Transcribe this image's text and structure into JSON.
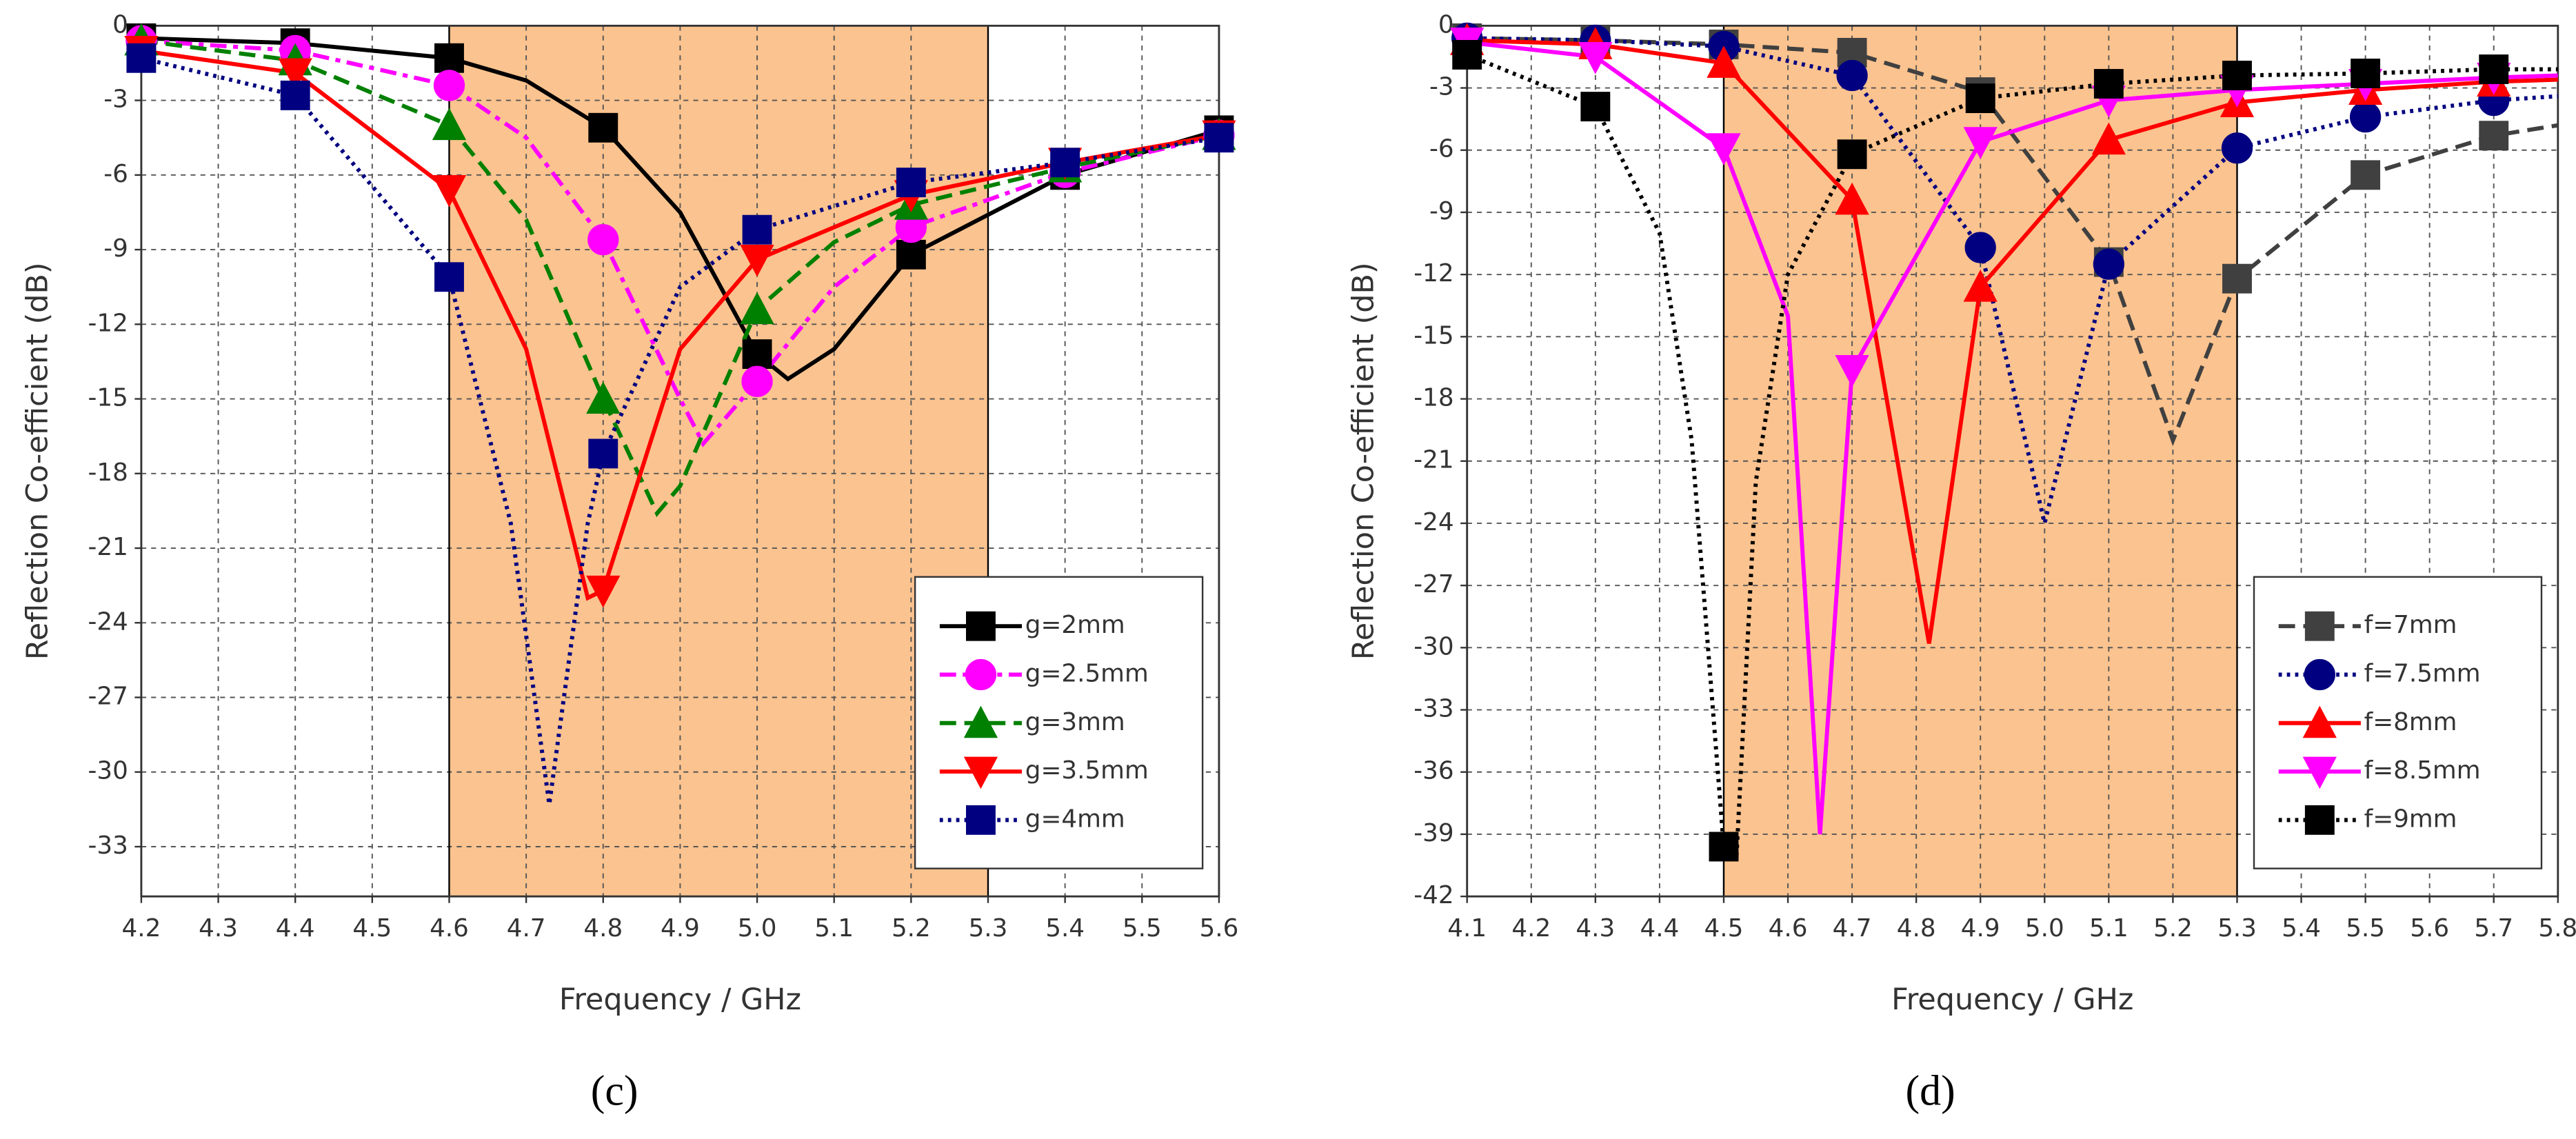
{
  "chart_data": [
    {
      "type": "line",
      "caption": "(c)",
      "xlabel": "Frequency / GHz",
      "ylabel": "Reflection Co-efficient (dB)",
      "xlim": [
        4.2,
        5.6
      ],
      "ylim": [
        -35,
        0
      ],
      "xticks": [
        4.2,
        4.3,
        4.4,
        4.5,
        4.6,
        4.7,
        4.8,
        4.9,
        {
          "value": 5,
          "label": "5.0"
        },
        5.1,
        5.2,
        5.3,
        5.4,
        5.5,
        5.6
      ],
      "yticks": [
        0,
        -3,
        -6,
        -9,
        -12,
        -15,
        -18,
        -21,
        -24,
        -27,
        -30,
        -33
      ],
      "grid": true,
      "shade_x": [
        4.6,
        5.3
      ],
      "shade_color": "#fbc38f",
      "legend_loc": "lower right",
      "marker_step": 0.2,
      "series": [
        {
          "name": "g=2mm",
          "color": "#000000",
          "dash": "solid",
          "marker": "square",
          "x": [
            4.2,
            4.4,
            4.6,
            4.7,
            4.8,
            4.9,
            5.0,
            5.04,
            5.1,
            5.2,
            5.4,
            5.6
          ],
          "values": [
            -0.5,
            -0.7,
            -1.3,
            -2.2,
            -4.1,
            -7.5,
            -13.2,
            -14.2,
            -13,
            -9.2,
            -6,
            -4.2
          ]
        },
        {
          "name": "g=2.5mm",
          "color": "#ff00ff",
          "dash": "dashdot",
          "marker": "circle",
          "x": [
            4.2,
            4.4,
            4.6,
            4.7,
            4.8,
            4.9,
            4.93,
            5.0,
            5.1,
            5.2,
            5.4,
            5.6
          ],
          "values": [
            -0.6,
            -1.0,
            -2.4,
            -4.5,
            -8.6,
            -15,
            -16.8,
            -14.3,
            -10.5,
            -8.1,
            -5.9,
            -4.4
          ]
        },
        {
          "name": "g=3mm",
          "color": "#008000",
          "dash": "dash",
          "marker": "triangle",
          "x": [
            4.2,
            4.4,
            4.6,
            4.7,
            4.8,
            4.87,
            4.9,
            5.0,
            5.1,
            5.2,
            5.4,
            5.6
          ],
          "values": [
            -0.6,
            -1.4,
            -4.0,
            -7.8,
            -15.0,
            -19.6,
            -18.5,
            -11.4,
            -8.7,
            -7.2,
            -5.7,
            -4.4
          ]
        },
        {
          "name": "g=3.5mm",
          "color": "#ff0000",
          "dash": "solid",
          "marker": "triangle-down",
          "x": [
            4.2,
            4.4,
            4.6,
            4.7,
            4.78,
            4.8,
            4.9,
            5.0,
            5.2,
            5.4,
            5.6
          ],
          "values": [
            -1.0,
            -1.9,
            -6.6,
            -13,
            -23,
            -22.7,
            -13,
            -9.4,
            -6.8,
            -5.5,
            -4.4
          ]
        },
        {
          "name": "g=4mm",
          "color": "#000080",
          "dash": "dotted",
          "marker": "square",
          "x": [
            4.2,
            4.4,
            4.6,
            4.68,
            4.73,
            4.78,
            4.8,
            4.9,
            5.0,
            5.2,
            5.4,
            5.6
          ],
          "values": [
            -1.3,
            -2.8,
            -10.1,
            -20,
            -31.3,
            -20,
            -17.2,
            -10.5,
            -8.2,
            -6.3,
            -5.5,
            -4.5
          ]
        }
      ]
    },
    {
      "type": "line",
      "caption": "(d)",
      "xlabel": "Frequency / GHz",
      "ylabel": "Reflection Co-efficient (dB)",
      "xlim": [
        4.1,
        5.8
      ],
      "ylim": [
        -42,
        0
      ],
      "xticks": [
        4.1,
        4.2,
        4.3,
        4.4,
        4.5,
        4.6,
        4.7,
        4.8,
        4.9,
        {
          "value": 5,
          "label": "5.0"
        },
        5.1,
        5.2,
        5.3,
        5.4,
        5.5,
        5.6,
        5.7,
        5.8
      ],
      "yticks": [
        0,
        -3,
        -6,
        -9,
        -12,
        -15,
        -18,
        -21,
        -24,
        -27,
        -30,
        -33,
        -36,
        -39,
        -42
      ],
      "grid": true,
      "shade_x": [
        4.5,
        5.3
      ],
      "shade_color": "#fbc38f",
      "legend_loc": "lower right",
      "marker_step": 0.2,
      "series": [
        {
          "name": "f=7mm",
          "color": "#404040",
          "dash": "dash",
          "marker": "square",
          "x": [
            4.1,
            4.3,
            4.5,
            4.7,
            4.9,
            5.1,
            5.2,
            5.3,
            5.5,
            5.7,
            5.8
          ],
          "values": [
            -0.6,
            -0.7,
            -0.9,
            -1.3,
            -3.2,
            -11.4,
            -20,
            -12.2,
            -7.2,
            -5.3,
            -4.8
          ]
        },
        {
          "name": "f=7.5mm",
          "color": "#000080",
          "dash": "dotted",
          "marker": "circle",
          "x": [
            4.1,
            4.3,
            4.5,
            4.7,
            4.9,
            5.0,
            5.1,
            5.3,
            5.5,
            5.7,
            5.8
          ],
          "values": [
            -0.6,
            -0.7,
            -1.0,
            -2.4,
            -10.7,
            -24,
            -11.5,
            -5.9,
            -4.4,
            -3.6,
            -3.4
          ]
        },
        {
          "name": "f=8mm",
          "color": "#ff0000",
          "dash": "solid",
          "marker": "triangle",
          "x": [
            4.1,
            4.3,
            4.5,
            4.7,
            4.82,
            4.9,
            5.1,
            5.3,
            5.5,
            5.7,
            5.8
          ],
          "values": [
            -0.7,
            -0.9,
            -1.8,
            -8.4,
            -29.8,
            -12.6,
            -5.5,
            -3.7,
            -3.1,
            -2.7,
            -2.6
          ]
        },
        {
          "name": "f=8.5mm",
          "color": "#ff00ff",
          "dash": "solid",
          "marker": "triangle-down",
          "x": [
            4.1,
            4.3,
            4.5,
            4.6,
            4.65,
            4.7,
            4.9,
            5.1,
            5.3,
            5.5,
            5.7,
            5.8
          ],
          "values": [
            -0.8,
            -1.5,
            -5.9,
            -14,
            -39,
            -16.6,
            -5.6,
            -3.6,
            -3.1,
            -2.8,
            -2.5,
            -2.4
          ]
        },
        {
          "name": "f=9mm",
          "color": "#000000",
          "dash": "dotted",
          "marker": "square",
          "x": [
            4.1,
            4.3,
            4.4,
            4.45,
            4.5,
            4.52,
            4.55,
            4.6,
            4.7,
            4.9,
            5.1,
            5.3,
            5.5,
            5.7,
            5.8
          ],
          "values": [
            -1.4,
            -3.9,
            -10,
            -20,
            -39.6,
            -40,
            -22,
            -12,
            -6.2,
            -3.5,
            -2.8,
            -2.4,
            -2.3,
            -2.1,
            -2.1
          ]
        }
      ]
    }
  ]
}
